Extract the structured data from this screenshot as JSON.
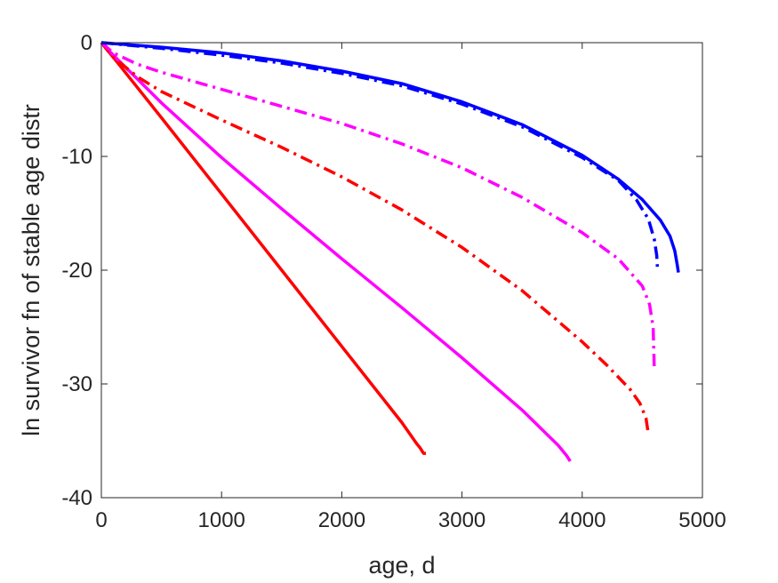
{
  "chart_data": {
    "type": "line",
    "title": "",
    "xlabel": "age, d",
    "ylabel": "ln survivor fn of stable age distr",
    "xlim": [
      0,
      5000
    ],
    "ylim": [
      -40,
      0
    ],
    "xticks": [
      0,
      1000,
      2000,
      3000,
      4000,
      5000
    ],
    "yticks": [
      0,
      -10,
      -20,
      -30,
      -40
    ],
    "xtick_labels": [
      "0",
      "1000",
      "2000",
      "3000",
      "4000",
      "5000"
    ],
    "ytick_labels": [
      "0",
      "-10",
      "-20",
      "-30",
      "-40"
    ],
    "grid": false,
    "legend": "none",
    "series": [
      {
        "color": "#ff0000",
        "style": "solid",
        "points": [
          [
            0,
            0
          ],
          [
            100,
            -1.3
          ],
          [
            500,
            -6.6
          ],
          [
            1000,
            -13.3
          ],
          [
            1500,
            -20.0
          ],
          [
            2000,
            -26.7
          ],
          [
            2500,
            -33.4
          ],
          [
            2620,
            -35.2
          ],
          [
            2650,
            -35.6
          ],
          [
            2680,
            -36.1
          ],
          [
            2700,
            -36.1
          ]
        ]
      },
      {
        "color": "#ff00ff",
        "style": "solid",
        "points": [
          [
            0,
            0
          ],
          [
            100,
            -1.1
          ],
          [
            500,
            -5.3
          ],
          [
            1000,
            -10.1
          ],
          [
            1500,
            -14.6
          ],
          [
            2000,
            -19.0
          ],
          [
            2500,
            -23.3
          ],
          [
            3000,
            -27.7
          ],
          [
            3500,
            -32.3
          ],
          [
            3800,
            -35.4
          ],
          [
            3870,
            -36.3
          ],
          [
            3900,
            -36.8
          ]
        ]
      },
      {
        "color": "#ff0000",
        "style": "dashdot",
        "points": [
          [
            0,
            0
          ],
          [
            100,
            -1.3
          ],
          [
            300,
            -3.0
          ],
          [
            500,
            -4.3
          ],
          [
            1000,
            -6.8
          ],
          [
            1500,
            -9.2
          ],
          [
            2000,
            -11.8
          ],
          [
            2500,
            -14.7
          ],
          [
            3000,
            -18.0
          ],
          [
            3500,
            -21.8
          ],
          [
            4000,
            -26.3
          ],
          [
            4200,
            -28.3
          ],
          [
            4400,
            -30.5
          ],
          [
            4480,
            -31.7
          ],
          [
            4530,
            -33.0
          ],
          [
            4550,
            -34.4
          ]
        ]
      },
      {
        "color": "#ff00ff",
        "style": "dashdot",
        "points": [
          [
            0,
            0
          ],
          [
            100,
            -0.9
          ],
          [
            300,
            -1.9
          ],
          [
            500,
            -2.6
          ],
          [
            1000,
            -4.1
          ],
          [
            1500,
            -5.6
          ],
          [
            2000,
            -7.1
          ],
          [
            2500,
            -8.9
          ],
          [
            3000,
            -11.0
          ],
          [
            3500,
            -13.6
          ],
          [
            4000,
            -16.7
          ],
          [
            4300,
            -19.0
          ],
          [
            4500,
            -21.4
          ],
          [
            4560,
            -23.0
          ],
          [
            4590,
            -25.0
          ],
          [
            4600,
            -28.8
          ]
        ]
      },
      {
        "color": "#0000ff",
        "style": "solid",
        "points": [
          [
            0,
            0
          ],
          [
            500,
            -0.4
          ],
          [
            1000,
            -0.9
          ],
          [
            1500,
            -1.6
          ],
          [
            2000,
            -2.5
          ],
          [
            2500,
            -3.6
          ],
          [
            3000,
            -5.2
          ],
          [
            3500,
            -7.2
          ],
          [
            4000,
            -9.9
          ],
          [
            4300,
            -12.0
          ],
          [
            4500,
            -13.8
          ],
          [
            4650,
            -15.6
          ],
          [
            4730,
            -17.0
          ],
          [
            4770,
            -18.3
          ],
          [
            4790,
            -19.5
          ],
          [
            4800,
            -20.2
          ]
        ]
      },
      {
        "color": "#0000ff",
        "style": "dashdot",
        "points": [
          [
            0,
            0
          ],
          [
            500,
            -0.5
          ],
          [
            1000,
            -1.1
          ],
          [
            1500,
            -1.8
          ],
          [
            2000,
            -2.7
          ],
          [
            2500,
            -3.8
          ],
          [
            3000,
            -5.4
          ],
          [
            3500,
            -7.4
          ],
          [
            4000,
            -10.1
          ],
          [
            4300,
            -12.1
          ],
          [
            4450,
            -13.8
          ],
          [
            4550,
            -15.5
          ],
          [
            4600,
            -17.3
          ],
          [
            4620,
            -18.7
          ],
          [
            4625,
            -19.7
          ]
        ]
      }
    ]
  }
}
